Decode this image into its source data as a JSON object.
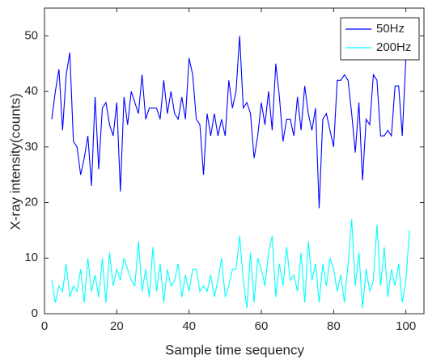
{
  "chart_data": {
    "type": "line",
    "xlabel": "Sample time sequency",
    "ylabel": "X-ray intensity(counts)",
    "x": [
      2,
      3,
      4,
      5,
      6,
      7,
      8,
      9,
      10,
      11,
      12,
      13,
      14,
      15,
      16,
      17,
      18,
      19,
      20,
      21,
      22,
      23,
      24,
      25,
      26,
      27,
      28,
      29,
      30,
      31,
      32,
      33,
      34,
      35,
      36,
      37,
      38,
      39,
      40,
      41,
      42,
      43,
      44,
      45,
      46,
      47,
      48,
      49,
      50,
      51,
      52,
      53,
      54,
      55,
      56,
      57,
      58,
      59,
      60,
      61,
      62,
      63,
      64,
      65,
      66,
      67,
      68,
      69,
      70,
      71,
      72,
      73,
      74,
      75,
      76,
      77,
      78,
      79,
      80,
      81,
      82,
      83,
      84,
      85,
      86,
      87,
      88,
      89,
      90,
      91,
      92,
      93,
      94,
      95,
      96,
      97,
      98,
      99,
      100,
      101
    ],
    "series": [
      {
        "name": "50Hz",
        "color": "#0000ff",
        "values": [
          35,
          40,
          44,
          33,
          43,
          47,
          31,
          30,
          25,
          28,
          32,
          23,
          39,
          26,
          37,
          38,
          34,
          32,
          38,
          22,
          39,
          34,
          40,
          38,
          36,
          43,
          35,
          37,
          37,
          37,
          35,
          42,
          36,
          40,
          36,
          35,
          39,
          35,
          46,
          43,
          35,
          34,
          25,
          36,
          32,
          36,
          32,
          35,
          32,
          42,
          37,
          40,
          50,
          37,
          38,
          36,
          28,
          32,
          38,
          34,
          40,
          33,
          45,
          39,
          31,
          35,
          35,
          32,
          39,
          33,
          41,
          36,
          33,
          37,
          19,
          35,
          36,
          33,
          30,
          42,
          42,
          43,
          42,
          36,
          29,
          38,
          24,
          35,
          34,
          43,
          42,
          32,
          32,
          33,
          32,
          41,
          41,
          32,
          46,
          48
        ]
      },
      {
        "name": "200Hz",
        "color": "#00ffff",
        "values": [
          6,
          2,
          5,
          4,
          9,
          3,
          5,
          4,
          8,
          2,
          10,
          4,
          7,
          3,
          10,
          2,
          11,
          5,
          8,
          6,
          10,
          8,
          6,
          5,
          13,
          4,
          8,
          3,
          12,
          4,
          9,
          2,
          8,
          5,
          6,
          9,
          3,
          7,
          4,
          8,
          8,
          4,
          5,
          4,
          7,
          3,
          6,
          10,
          3,
          5,
          8,
          8,
          14,
          6,
          1,
          11,
          2,
          10,
          8,
          5,
          11,
          14,
          3,
          9,
          5,
          12,
          6,
          7,
          4,
          11,
          2,
          13,
          6,
          9,
          2,
          9,
          5,
          10,
          8,
          4,
          7,
          2,
          9,
          17,
          5,
          11,
          1,
          8,
          4,
          6,
          16,
          5,
          12,
          3,
          8,
          5,
          9,
          2,
          6,
          15
        ]
      }
    ],
    "xlim": [
      0,
      105
    ],
    "ylim": [
      0,
      55
    ],
    "xticks": [
      0,
      20,
      40,
      60,
      80,
      100
    ],
    "yticks": [
      0,
      10,
      20,
      30,
      40,
      50
    ],
    "legend": "upper right"
  }
}
